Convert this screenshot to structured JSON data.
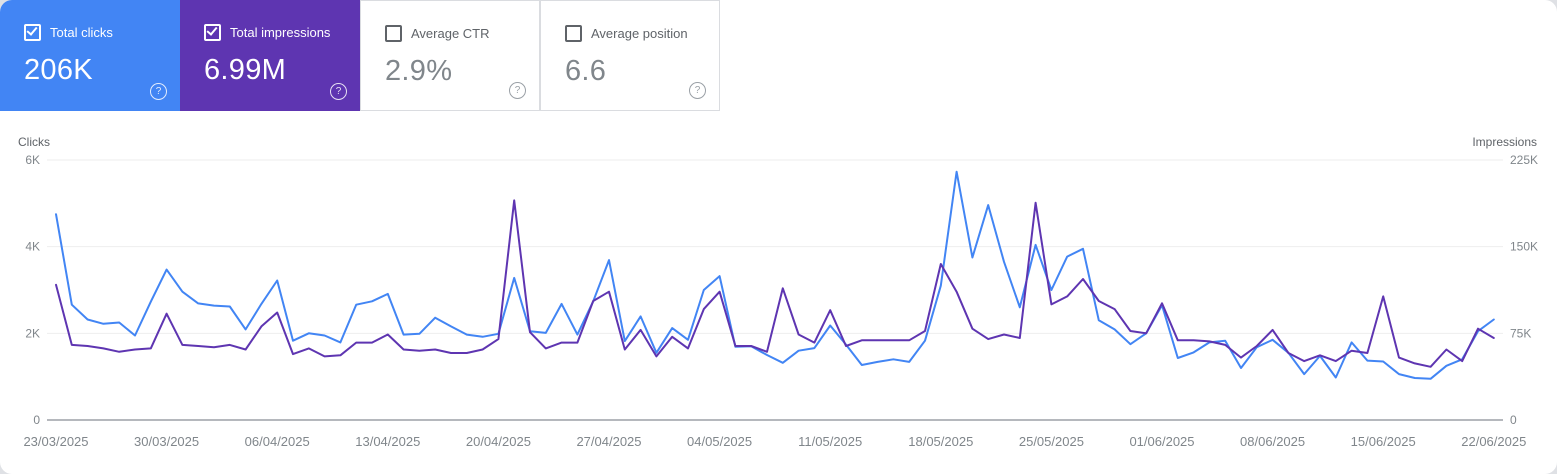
{
  "cards": [
    {
      "label": "Total clicks",
      "value": "206K",
      "checked": true,
      "bg": "#4285f4"
    },
    {
      "label": "Total impressions",
      "value": "6.99M",
      "checked": true,
      "bg": "#5e35b1"
    },
    {
      "label": "Average CTR",
      "value": "2.9%",
      "checked": false,
      "bg": "#ffffff"
    },
    {
      "label": "Average position",
      "value": "6.6",
      "checked": false,
      "bg": "#ffffff"
    }
  ],
  "help_glyph": "?",
  "colors": {
    "clicks_blue": "#4285f4",
    "impressions_purple": "#5e35b1",
    "card_border": "#dadce0",
    "gridline": "#eeeeee",
    "axis_line": "#b5b8bd",
    "tick_text": "#80868b"
  },
  "chart_data": {
    "type": "line",
    "title": "",
    "x_unit": "day",
    "x_tick_labels": [
      "23/03/2025",
      "30/03/2025",
      "06/04/2025",
      "13/04/2025",
      "20/04/2025",
      "27/04/2025",
      "04/05/2025",
      "11/05/2025",
      "18/05/2025",
      "25/05/2025",
      "01/06/2025",
      "08/06/2025",
      "15/06/2025",
      "22/06/2025"
    ],
    "x_tick_interval_days": 7,
    "left_axis": {
      "title": "Clicks",
      "ticks": [
        "6K",
        "4K",
        "2K",
        "0"
      ],
      "range": [
        0,
        6000
      ],
      "grid": true
    },
    "right_axis": {
      "title": "Impressions",
      "ticks": [
        "225K",
        "150K",
        "75K",
        "0"
      ],
      "range": [
        0,
        225000
      ],
      "grid": false
    },
    "series": [
      {
        "name": "Clicks",
        "axis": "left",
        "color": "#4285f4",
        "values": [
          4750,
          2660,
          2320,
          2220,
          2250,
          1950,
          2730,
          3470,
          2960,
          2690,
          2640,
          2620,
          2090,
          2680,
          3220,
          1830,
          2000,
          1950,
          1790,
          2660,
          2740,
          2910,
          1970,
          1990,
          2360,
          2160,
          1970,
          1920,
          1990,
          3280,
          2050,
          2010,
          2680,
          1970,
          2740,
          3690,
          1820,
          2390,
          1550,
          2120,
          1850,
          3000,
          3320,
          1690,
          1700,
          1500,
          1320,
          1600,
          1660,
          2180,
          1740,
          1270,
          1340,
          1400,
          1340,
          1830,
          3100,
          5730,
          3750,
          4960,
          3650,
          2600,
          4040,
          3000,
          3770,
          3950,
          2300,
          2090,
          1750,
          2000,
          2650,
          1430,
          1560,
          1790,
          1830,
          1200,
          1680,
          1850,
          1550,
          1060,
          1480,
          980,
          1790,
          1370,
          1350,
          1060,
          970,
          950,
          1250,
          1400,
          2050,
          2320
        ]
      },
      {
        "name": "Impressions",
        "axis": "right",
        "color": "#5e35b1",
        "values": [
          117000,
          65000,
          64000,
          62000,
          59000,
          61000,
          62000,
          92000,
          65000,
          64000,
          63000,
          65000,
          61000,
          81000,
          93000,
          57000,
          62000,
          55000,
          56000,
          67000,
          67000,
          74000,
          61000,
          60000,
          61000,
          58000,
          58000,
          61000,
          70000,
          190000,
          76000,
          62000,
          67000,
          67000,
          103000,
          111000,
          61000,
          78000,
          55000,
          72000,
          62000,
          96000,
          111000,
          64000,
          64000,
          59000,
          114000,
          74000,
          67000,
          95000,
          64000,
          69000,
          69000,
          69000,
          69000,
          77000,
          135000,
          111000,
          79000,
          70000,
          74000,
          71000,
          188000,
          100000,
          107000,
          122000,
          103000,
          96000,
          77000,
          75000,
          101000,
          69000,
          69000,
          68000,
          65000,
          54000,
          64000,
          78000,
          58000,
          51000,
          56000,
          51000,
          60000,
          58000,
          107000,
          54000,
          49000,
          46000,
          61000,
          51000,
          79000,
          71000
        ]
      }
    ]
  }
}
